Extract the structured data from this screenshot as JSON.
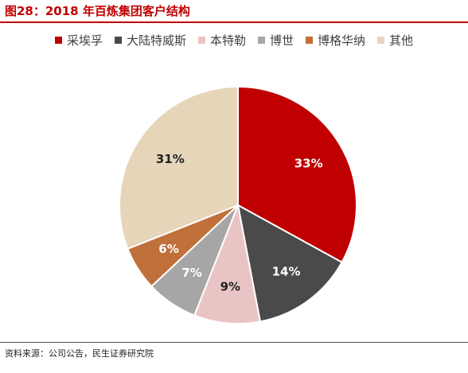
{
  "figure_title": "图28：2018 年百炼集团客户结构",
  "source_note": "资料来源：公司公告，民生证券研究院",
  "chart_data": {
    "type": "pie",
    "legend_position": "top",
    "slices": [
      {
        "name": "采埃孚",
        "value": 33,
        "label": "33%",
        "color": "#c00000",
        "label_color": "#ffffff"
      },
      {
        "name": "大陆特威斯",
        "value": 14,
        "label": "14%",
        "color": "#4a4a4a",
        "label_color": "#ffffff"
      },
      {
        "name": "本特勒",
        "value": 9,
        "label": "9%",
        "color": "#eac4c4",
        "label_color": "#222222"
      },
      {
        "name": "博世",
        "value": 7,
        "label": "7%",
        "color": "#a6a6a6",
        "label_color": "#ffffff"
      },
      {
        "name": "博格华纳",
        "value": 6,
        "label": "6%",
        "color": "#c0703a",
        "label_color": "#ffffff"
      },
      {
        "name": "其他",
        "value": 31,
        "label": "31%",
        "color": "#e6d5b8",
        "label_color": "#222222"
      }
    ]
  }
}
